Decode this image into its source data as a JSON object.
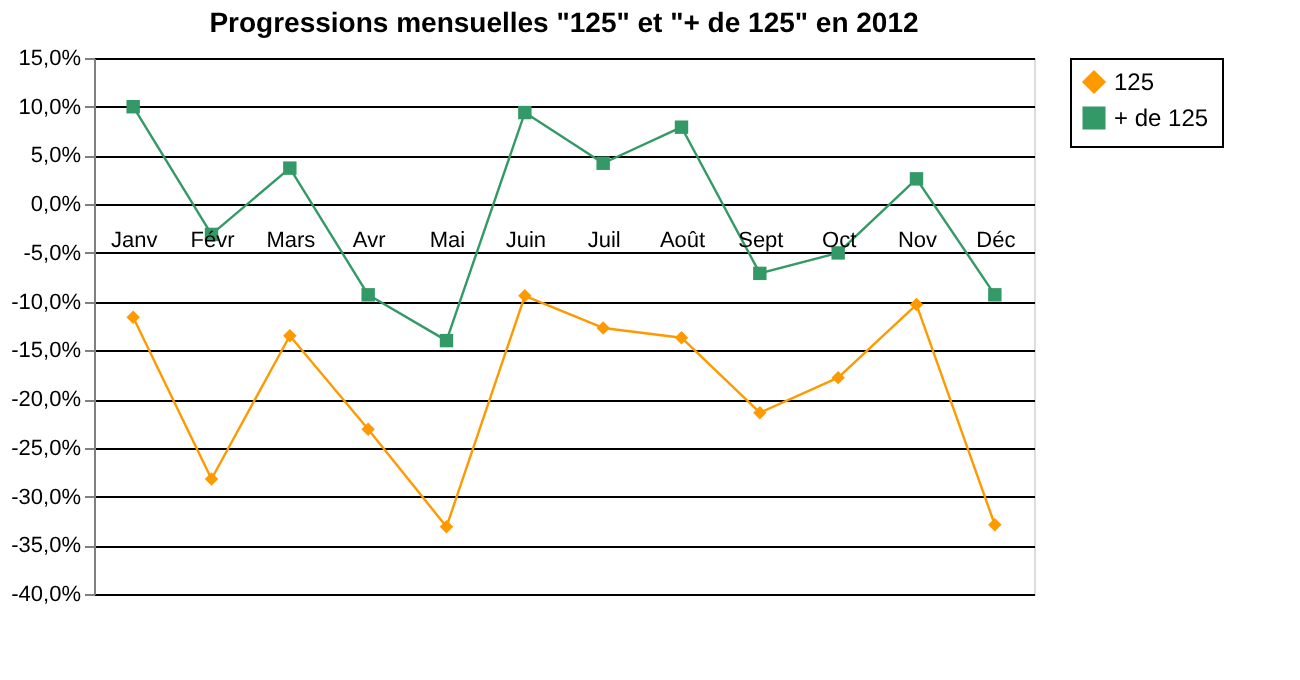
{
  "chart_data": {
    "type": "line",
    "title": "Progressions mensuelles \"125\" et \"+ de 125\" en 2012",
    "categories": [
      "Janv",
      "Févr",
      "Mars",
      "Avr",
      "Mai",
      "Juin",
      "Juil",
      "Août",
      "Sept",
      "Oct",
      "Nov",
      "Déc"
    ],
    "series": [
      {
        "name": "125",
        "color": "#ff9900",
        "marker": "diamond",
        "values": [
          -11.6,
          -28.2,
          -13.5,
          -23.1,
          -33.1,
          -9.4,
          -12.7,
          -13.7,
          -21.4,
          -17.8,
          -10.3,
          -32.9
        ]
      },
      {
        "name": "+ de 125",
        "color": "#339966",
        "marker": "square",
        "values": [
          10.0,
          -3.1,
          3.7,
          -9.3,
          -14.0,
          9.4,
          4.2,
          7.9,
          -7.1,
          -5.0,
          2.6,
          -9.3
        ]
      }
    ],
    "ylim": [
      -40,
      15
    ],
    "yticks": [
      {
        "value": -40,
        "label": "-40,0%"
      },
      {
        "value": -35,
        "label": "-35,0%"
      },
      {
        "value": -30,
        "label": "-30,0%"
      },
      {
        "value": -25,
        "label": "-25,0%"
      },
      {
        "value": -20,
        "label": "-20,0%"
      },
      {
        "value": -15,
        "label": "-15,0%"
      },
      {
        "value": -10,
        "label": "-10,0%"
      },
      {
        "value": -5,
        "label": "-5,0%"
      },
      {
        "value": 0,
        "label": "0,0%"
      },
      {
        "value": 5,
        "label": "5,0%"
      },
      {
        "value": 10,
        "label": "10,0%"
      },
      {
        "value": 15,
        "label": "15,0%"
      }
    ],
    "grid": "y",
    "legend": "right",
    "line_style": "solid"
  }
}
